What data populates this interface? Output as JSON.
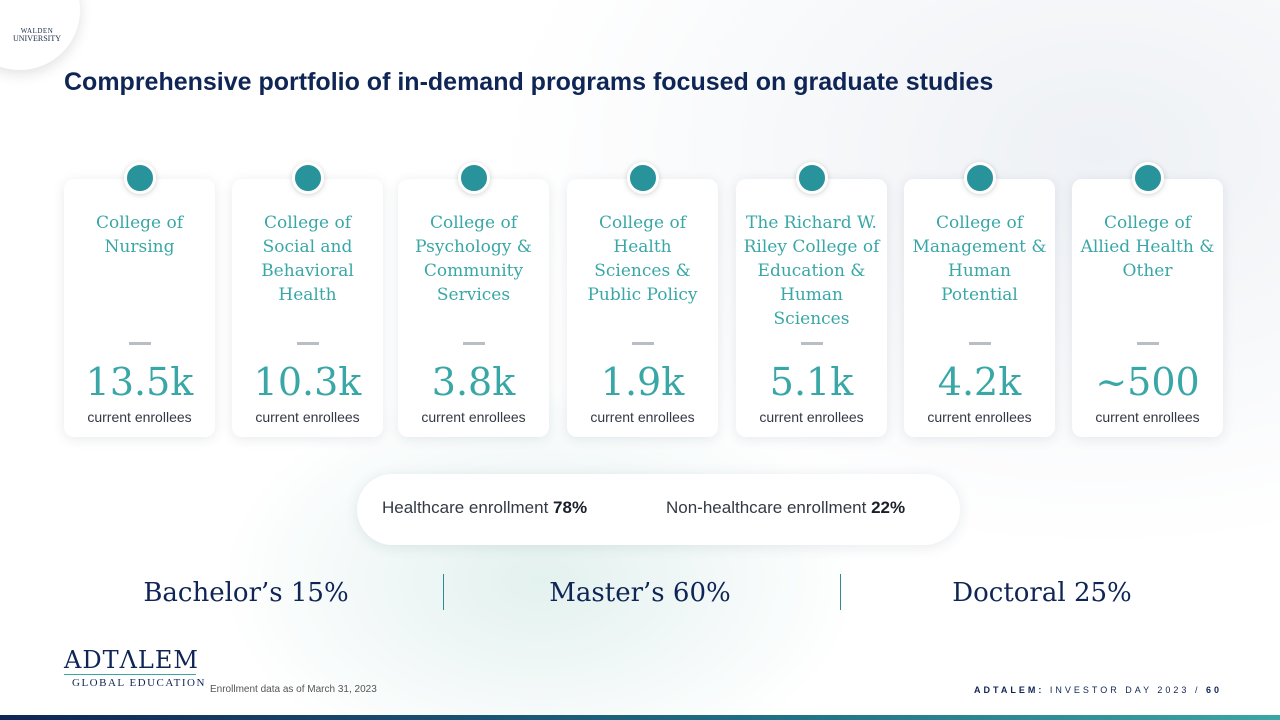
{
  "brand": {
    "walden_line1": "WALDEN",
    "walden_line2": "UNIVERSITY",
    "adtalem": "ADTΛLEM",
    "global_education": "GLOBAL EDUCATION"
  },
  "title": "Comprehensive portfolio of in-demand programs focused on graduate studies",
  "colleges": [
    {
      "name": "College of Nursing",
      "value": "13.5k",
      "label": "current enrollees"
    },
    {
      "name": "College of Social and Behavioral Health",
      "value": "10.3k",
      "label": "current enrollees"
    },
    {
      "name": "College of Psychology & Community Services",
      "value": "3.8k",
      "label": "current enrollees"
    },
    {
      "name": "College of Health Sciences & Public Policy",
      "value": "1.9k",
      "label": "current enrollees"
    },
    {
      "name": "The Richard W. Riley College of Education & Human Sciences",
      "value": "5.1k",
      "label": "current enrollees"
    },
    {
      "name": "College of Management & Human Potential",
      "value": "4.2k",
      "label": "current enrollees"
    },
    {
      "name": "College of Allied Health & Other",
      "value": "~500",
      "label": "current enrollees"
    }
  ],
  "enrollment_split": {
    "healthcare_label": "Healthcare enrollment",
    "healthcare_value": "78%",
    "non_healthcare_label": "Non-healthcare enrollment",
    "non_healthcare_value": "22%"
  },
  "degrees": {
    "bachelors": "Bachelor’s 15%",
    "masters": "Master’s 60%",
    "doctoral": "Doctoral 25%"
  },
  "footnote": "Enrollment data as of March 31, 2023",
  "footer": {
    "company": "ADTALEM:",
    "event": "INVESTOR DAY 2023",
    "separator": "/",
    "page": "60"
  },
  "colors": {
    "navy": "#0f2556",
    "teal": "#3aa7a7",
    "dot": "#29939b"
  }
}
